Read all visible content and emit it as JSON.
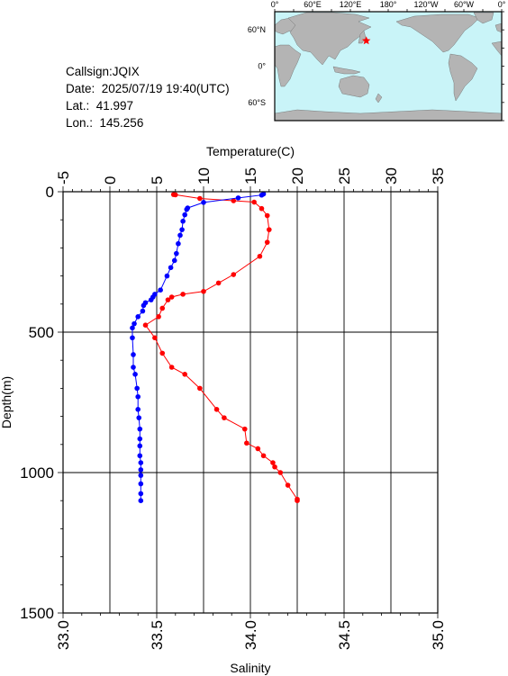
{
  "station": {
    "callsign": "Callsign:JQIX",
    "date": "Date:  2025/07/19 19:40(UTC)",
    "lat": "Lat.:  41.997",
    "lon": "Lon.:  145.256"
  },
  "map": {
    "lon_labels": [
      "0°",
      "60°E",
      "120°E",
      "180°",
      "120°W",
      "60°W",
      "0°"
    ],
    "lat_labels": [
      "60°N",
      "0°",
      "60°S"
    ],
    "ocean_color": "#c9f4f8",
    "land_color": "#b4b4b4",
    "marker_color": "#ff0000",
    "marker": {
      "lon": 145.256,
      "lat": 41.997
    }
  },
  "chart_data": {
    "type": "line",
    "top_axis": {
      "label": "Temperature(C)",
      "range": [
        -5,
        35
      ],
      "ticks": [
        "-5",
        "0",
        "5",
        "10",
        "15",
        "20",
        "25",
        "30",
        "35"
      ]
    },
    "bottom_axis": {
      "label": "Salinity",
      "range": [
        33.0,
        35.0
      ],
      "ticks": [
        "33.0",
        "33.5",
        "34.0",
        "34.5",
        "35.0"
      ]
    },
    "y_axis": {
      "label": "Depth(m)",
      "range": [
        0,
        1500
      ],
      "inverted": true,
      "ticks": [
        "0",
        "500",
        "1000",
        "1500"
      ]
    },
    "grid": true,
    "series": [
      {
        "color": "#ff0000",
        "axis": "salinity",
        "points": [
          {
            "x": 33.59,
            "y": 10
          },
          {
            "x": 33.6,
            "y": 11
          },
          {
            "x": 33.73,
            "y": 24
          },
          {
            "x": 33.91,
            "y": 32
          },
          {
            "x": 34.02,
            "y": 37
          },
          {
            "x": 34.06,
            "y": 60
          },
          {
            "x": 34.09,
            "y": 85
          },
          {
            "x": 34.1,
            "y": 135
          },
          {
            "x": 34.09,
            "y": 180
          },
          {
            "x": 34.05,
            "y": 230
          },
          {
            "x": 33.91,
            "y": 295
          },
          {
            "x": 33.83,
            "y": 325
          },
          {
            "x": 33.75,
            "y": 355
          },
          {
            "x": 33.64,
            "y": 365
          },
          {
            "x": 33.58,
            "y": 375
          },
          {
            "x": 33.56,
            "y": 385
          },
          {
            "x": 33.53,
            "y": 415
          },
          {
            "x": 33.51,
            "y": 445
          },
          {
            "x": 33.44,
            "y": 475
          },
          {
            "x": 33.49,
            "y": 520
          },
          {
            "x": 33.53,
            "y": 575
          },
          {
            "x": 33.58,
            "y": 625
          },
          {
            "x": 33.65,
            "y": 650
          },
          {
            "x": 33.73,
            "y": 700
          },
          {
            "x": 33.82,
            "y": 775
          },
          {
            "x": 33.86,
            "y": 805
          },
          {
            "x": 33.97,
            "y": 845
          },
          {
            "x": 33.98,
            "y": 895
          },
          {
            "x": 34.04,
            "y": 915
          },
          {
            "x": 34.07,
            "y": 940
          },
          {
            "x": 34.12,
            "y": 965
          },
          {
            "x": 34.13,
            "y": 980
          },
          {
            "x": 34.16,
            "y": 1000
          },
          {
            "x": 34.2,
            "y": 1045
          },
          {
            "x": 34.25,
            "y": 1095
          },
          {
            "x": 34.25,
            "y": 1100
          }
        ]
      },
      {
        "color": "#0000ff",
        "axis": "temperature",
        "points": [
          {
            "x": 16.4,
            "y": 8
          },
          {
            "x": 16.2,
            "y": 12
          },
          {
            "x": 13.7,
            "y": 22
          },
          {
            "x": 10.0,
            "y": 38
          },
          {
            "x": 8.3,
            "y": 58
          },
          {
            "x": 8.2,
            "y": 63
          },
          {
            "x": 8.0,
            "y": 82
          },
          {
            "x": 7.8,
            "y": 105
          },
          {
            "x": 7.7,
            "y": 135
          },
          {
            "x": 7.5,
            "y": 155
          },
          {
            "x": 7.3,
            "y": 185
          },
          {
            "x": 7.1,
            "y": 220
          },
          {
            "x": 6.9,
            "y": 245
          },
          {
            "x": 6.5,
            "y": 270
          },
          {
            "x": 6.1,
            "y": 300
          },
          {
            "x": 5.4,
            "y": 350
          },
          {
            "x": 4.8,
            "y": 365
          },
          {
            "x": 4.6,
            "y": 375
          },
          {
            "x": 4.4,
            "y": 385
          },
          {
            "x": 3.8,
            "y": 395
          },
          {
            "x": 3.6,
            "y": 405
          },
          {
            "x": 3.5,
            "y": 425
          },
          {
            "x": 3.0,
            "y": 445
          },
          {
            "x": 2.6,
            "y": 470
          },
          {
            "x": 2.4,
            "y": 485
          },
          {
            "x": 2.4,
            "y": 520
          },
          {
            "x": 2.5,
            "y": 580
          },
          {
            "x": 2.5,
            "y": 625
          },
          {
            "x": 2.7,
            "y": 650
          },
          {
            "x": 2.9,
            "y": 700
          },
          {
            "x": 3.0,
            "y": 730
          },
          {
            "x": 3.0,
            "y": 775
          },
          {
            "x": 3.1,
            "y": 805
          },
          {
            "x": 3.2,
            "y": 845
          },
          {
            "x": 3.2,
            "y": 880
          },
          {
            "x": 3.2,
            "y": 905
          },
          {
            "x": 3.2,
            "y": 940
          },
          {
            "x": 3.3,
            "y": 965
          },
          {
            "x": 3.3,
            "y": 990
          },
          {
            "x": 3.3,
            "y": 1010
          },
          {
            "x": 3.3,
            "y": 1040
          },
          {
            "x": 3.3,
            "y": 1075
          },
          {
            "x": 3.3,
            "y": 1100
          }
        ]
      }
    ]
  }
}
